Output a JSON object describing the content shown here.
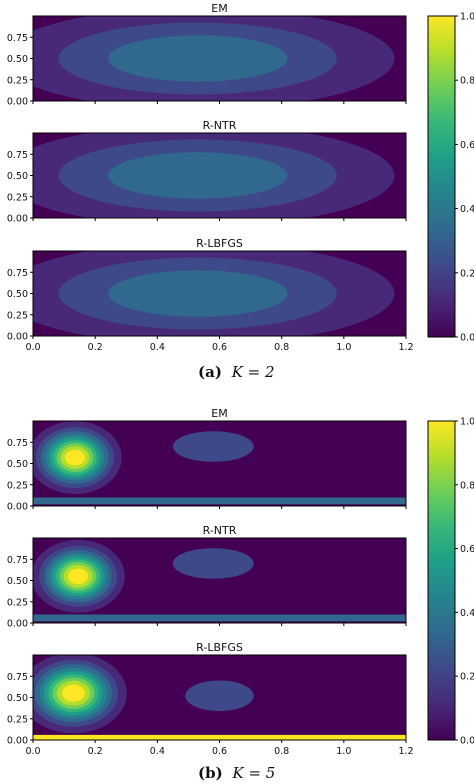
{
  "colors": {
    "colormap": [
      "#440154",
      "#482878",
      "#3e4989",
      "#31688e",
      "#26828e",
      "#1f9e89",
      "#35b779",
      "#6ece58",
      "#b5de2b",
      "#fde725"
    ],
    "frame": "#000000"
  },
  "captions": [
    {
      "label": "(a)",
      "text": "K = 2"
    },
    {
      "label": "(b)",
      "text": "K = 5"
    }
  ],
  "chart_data": [
    {
      "type": "heatmap",
      "group": "a",
      "title": "EM",
      "xlim": [
        0,
        1.2
      ],
      "ylim": [
        0,
        1.0
      ],
      "xticks": [
        "0.0",
        "0.2",
        "0.4",
        "0.6",
        "0.8",
        "1.0",
        "1.2"
      ],
      "yticks": [
        "0.00",
        "0.25",
        "0.50",
        "0.75"
      ],
      "colorbar": {
        "range": [
          0,
          1.0
        ],
        "ticks": [
          "0.0",
          "0.2",
          "0.4",
          "0.6",
          "0.8",
          "1.0"
        ]
      },
      "features": [
        {
          "kind": "gaussian",
          "x": 0.53,
          "y": 0.5,
          "sx": 0.38,
          "sy": 0.36,
          "peak": 0.32
        }
      ]
    },
    {
      "type": "heatmap",
      "group": "a",
      "title": "R-NTR",
      "xlim": [
        0,
        1.2
      ],
      "ylim": [
        0,
        1.0
      ],
      "xticks": [
        "0.0",
        "0.2",
        "0.4",
        "0.6",
        "0.8",
        "1.0",
        "1.2"
      ],
      "yticks": [
        "0.00",
        "0.25",
        "0.50",
        "0.75"
      ],
      "features": [
        {
          "kind": "gaussian",
          "x": 0.53,
          "y": 0.5,
          "sx": 0.38,
          "sy": 0.36,
          "peak": 0.32
        }
      ]
    },
    {
      "type": "heatmap",
      "group": "a",
      "title": "R-LBFGS",
      "xlim": [
        0,
        1.2
      ],
      "ylim": [
        0,
        1.0
      ],
      "xticks": [
        "0.0",
        "0.2",
        "0.4",
        "0.6",
        "0.8",
        "1.0",
        "1.2"
      ],
      "yticks": [
        "0.00",
        "0.25",
        "0.50",
        "0.75"
      ],
      "features": [
        {
          "kind": "gaussian",
          "x": 0.53,
          "y": 0.5,
          "sx": 0.38,
          "sy": 0.36,
          "peak": 0.32
        }
      ]
    },
    {
      "type": "heatmap",
      "group": "b",
      "title": "EM",
      "xlim": [
        0,
        1.2
      ],
      "ylim": [
        0,
        1.0
      ],
      "xticks": [
        "0.0",
        "0.2",
        "0.4",
        "0.6",
        "0.8",
        "1.0",
        "1.2"
      ],
      "yticks": [
        "0.00",
        "0.25",
        "0.50",
        "0.75"
      ],
      "colorbar": {
        "range": [
          0,
          1.0
        ],
        "ticks": [
          "0.0",
          "0.2",
          "0.4",
          "0.6",
          "0.8",
          "1.0"
        ]
      },
      "features": [
        {
          "kind": "gaussian",
          "x": 0.135,
          "y": 0.57,
          "sx": 0.07,
          "sy": 0.2,
          "peak": 1.0
        },
        {
          "kind": "ellipse",
          "x": 0.58,
          "y": 0.7,
          "rx": 0.13,
          "ry": 0.18,
          "value": 0.22
        },
        {
          "kind": "band",
          "y": 0.06,
          "h": 0.08,
          "x0": 0.0,
          "x1": 1.2,
          "value": 0.32
        }
      ]
    },
    {
      "type": "heatmap",
      "group": "b",
      "title": "R-NTR",
      "xlim": [
        0,
        1.2
      ],
      "ylim": [
        0,
        1.0
      ],
      "xticks": [
        "0.0",
        "0.2",
        "0.4",
        "0.6",
        "0.8",
        "1.0",
        "1.2"
      ],
      "yticks": [
        "0.00",
        "0.25",
        "0.50",
        "0.75"
      ],
      "features": [
        {
          "kind": "gaussian",
          "x": 0.145,
          "y": 0.55,
          "sx": 0.07,
          "sy": 0.2,
          "peak": 1.0
        },
        {
          "kind": "ellipse",
          "x": 0.58,
          "y": 0.7,
          "rx": 0.13,
          "ry": 0.18,
          "value": 0.22
        },
        {
          "kind": "band",
          "y": 0.06,
          "h": 0.08,
          "x0": 0.0,
          "x1": 1.2,
          "value": 0.32
        }
      ]
    },
    {
      "type": "heatmap",
      "group": "b",
      "title": "R-LBFGS",
      "xlim": [
        0,
        1.2
      ],
      "ylim": [
        0,
        1.0
      ],
      "xticks": [
        "0.0",
        "0.2",
        "0.4",
        "0.6",
        "0.8",
        "1.0",
        "1.2"
      ],
      "yticks": [
        "0.00",
        "0.25",
        "0.50",
        "0.75"
      ],
      "features": [
        {
          "kind": "gaussian",
          "x": 0.13,
          "y": 0.55,
          "sx": 0.08,
          "sy": 0.22,
          "peak": 1.0
        },
        {
          "kind": "ellipse",
          "x": 0.6,
          "y": 0.52,
          "rx": 0.11,
          "ry": 0.18,
          "value": 0.22
        },
        {
          "kind": "band",
          "y": 0.03,
          "h": 0.06,
          "x0": 0.0,
          "x1": 1.2,
          "value": 0.95
        }
      ]
    }
  ]
}
